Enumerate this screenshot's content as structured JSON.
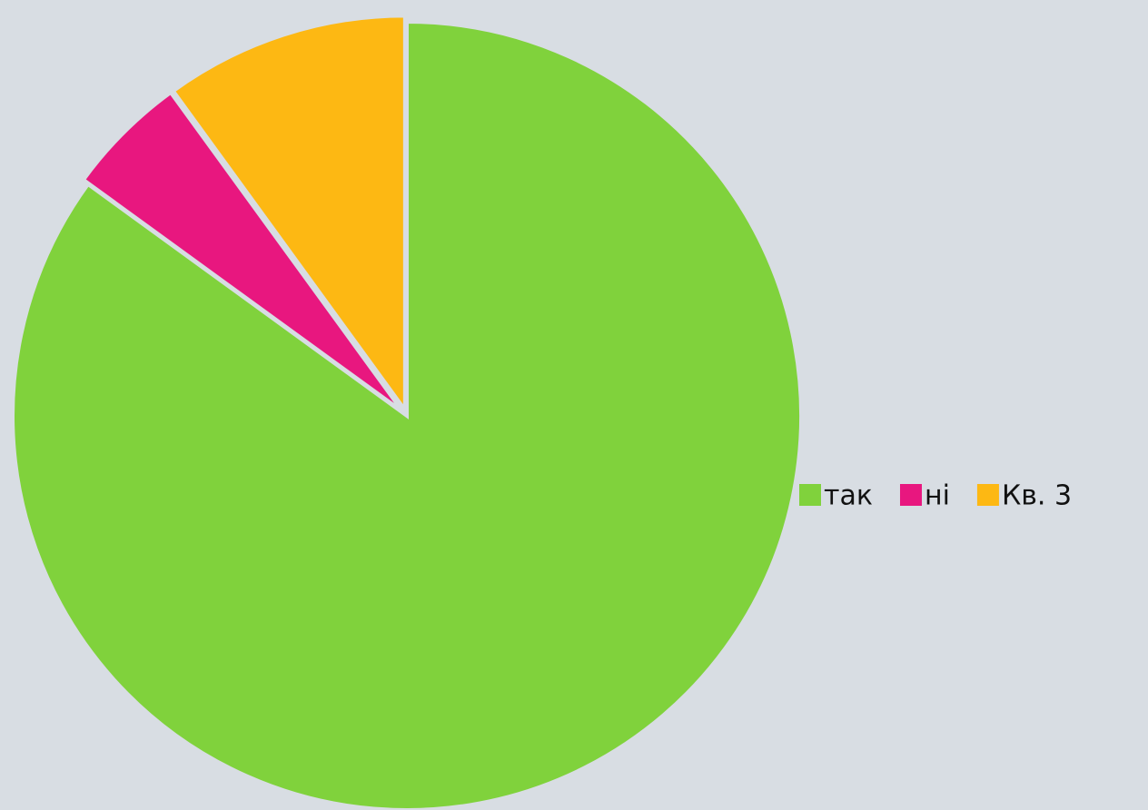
{
  "chart_data": {
    "type": "pie",
    "categories": [
      "так",
      "ні",
      "Кв. 3"
    ],
    "values": [
      85,
      5,
      10
    ],
    "colors": [
      "#80d23c",
      "#e8177f",
      "#fdb813"
    ],
    "legend": "right"
  }
}
